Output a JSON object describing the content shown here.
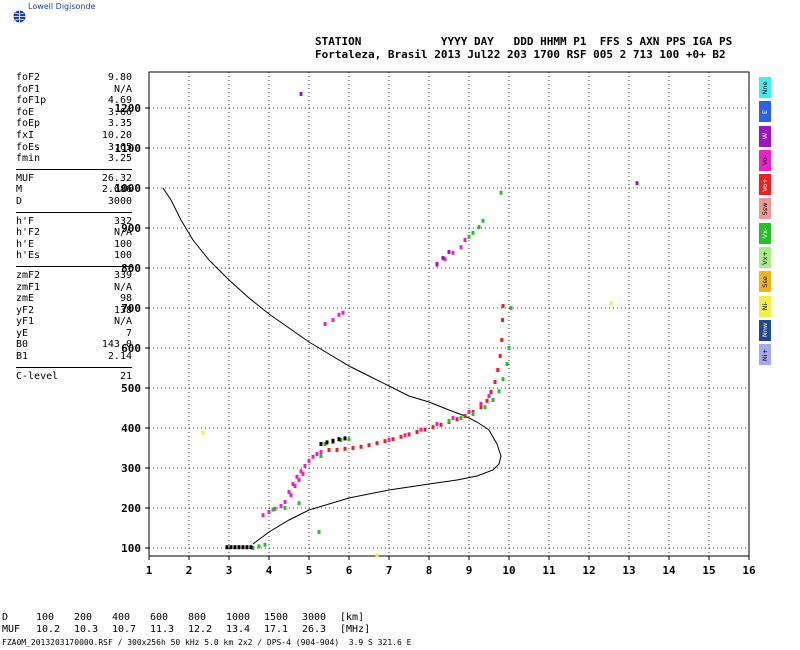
{
  "logo": {
    "text": "Lowell Digisonde",
    "icon": "globe-icon"
  },
  "header": {
    "line1": "STATION            YYYY DAY   DDD HHMM P1  FFS S AXN PPS IGA PS",
    "line2": "Fortaleza, Brasil 2013 Jul22 203 1700 RSF 005 2 713 100 +0+ B2"
  },
  "params": {
    "group1": [
      {
        "name": "foF2",
        "value": "9.80"
      },
      {
        "name": "foF1",
        "value": "N/A"
      },
      {
        "name": "foF1p",
        "value": "4.69"
      },
      {
        "name": "foE",
        "value": "3.66"
      },
      {
        "name": "foEp",
        "value": "3.35"
      },
      {
        "name": "fxI",
        "value": "10.20"
      },
      {
        "name": "foEs",
        "value": "3.65"
      },
      {
        "name": "fmin",
        "value": "3.25"
      }
    ],
    "group2": [
      {
        "name": "MUF",
        "value": "26.32"
      },
      {
        "name": "M",
        "value": "2.686"
      },
      {
        "name": "D",
        "value": "3000"
      }
    ],
    "group3": [
      {
        "name": "h'F",
        "value": "332"
      },
      {
        "name": "h'F2",
        "value": "N/A"
      },
      {
        "name": "h'E",
        "value": "100"
      },
      {
        "name": "h'Es",
        "value": "100"
      }
    ],
    "group4": [
      {
        "name": "zmF2",
        "value": "339"
      },
      {
        "name": "zmF1",
        "value": "N/A"
      },
      {
        "name": "zmE",
        "value": "98"
      },
      {
        "name": "yF2",
        "value": "138"
      },
      {
        "name": "yF1",
        "value": "N/A"
      },
      {
        "name": "yE",
        "value": "7"
      },
      {
        "name": "B0",
        "value": "143.0"
      },
      {
        "name": "B1",
        "value": "2.14"
      }
    ],
    "group5": [
      {
        "name": "C-level",
        "value": "21"
      }
    ]
  },
  "legend": [
    {
      "label": "Nne",
      "color": "#3cf0f0"
    },
    {
      "label": "E",
      "color": "#2c62e8"
    },
    {
      "label": "W",
      "color": "#9c14c8"
    },
    {
      "label": "Vo-",
      "color": "#f020c8"
    },
    {
      "label": "Vo+",
      "color": "#f01e1e"
    },
    {
      "label": "Ssw",
      "color": "#f09898"
    },
    {
      "label": "Vx-",
      "color": "#28c028"
    },
    {
      "label": "Vx+",
      "color": "#a8ee88"
    },
    {
      "label": "Sse",
      "color": "#f0b414"
    },
    {
      "label": "Ni-",
      "color": "#f0f040"
    },
    {
      "label": "Nnw",
      "color": "#1e4890"
    },
    {
      "label": "Ni+",
      "color": "#a8a8ee"
    }
  ],
  "bottom_table": {
    "rows": [
      [
        "D",
        "100",
        "200",
        "400",
        "600",
        "800",
        "1000",
        "1500",
        "3000",
        "[km]"
      ],
      [
        "MUF",
        "10.2",
        "10.3",
        "10.7",
        "11.3",
        "12.2",
        "13.4",
        "17.1",
        "26.3",
        "[MHz]"
      ]
    ]
  },
  "footer": "FZA0M_2013203170000.RSF / 300x256h 50 kHz 5.0 km 2x2 / DPS-4 (904-904)  3.9 S 321.6 E",
  "chart_data": {
    "type": "scatter",
    "xlim": [
      1,
      16
    ],
    "ylim": [
      80,
      1290
    ],
    "x_ticks": [
      "1",
      "2",
      "3",
      "4",
      "5",
      "6",
      "7",
      "8",
      "9",
      "10",
      "11",
      "12",
      "13",
      "14",
      "15",
      "16"
    ],
    "y_ticks": [
      "100",
      "200",
      "300",
      "400",
      "500",
      "600",
      "700",
      "800",
      "900",
      "1000",
      "1100",
      "1200"
    ],
    "grid": true,
    "profile_line": {
      "x": [
        1.35,
        1.55,
        1.8,
        2.1,
        2.5,
        3.0,
        3.5,
        4.0,
        4.5,
        5.0,
        5.5,
        6.0,
        6.5,
        7.0,
        7.5,
        8.0,
        8.5,
        8.9,
        9.2,
        9.5,
        9.7,
        9.8,
        9.75,
        9.6,
        9.2,
        8.7,
        8.0,
        7.0,
        6.0,
        5.0,
        4.5,
        4.0,
        3.6
      ],
      "y": [
        1000,
        970,
        920,
        870,
        820,
        770,
        725,
        685,
        650,
        615,
        585,
        555,
        530,
        505,
        480,
        465,
        445,
        430,
        415,
        395,
        360,
        330,
        310,
        295,
        280,
        270,
        260,
        245,
        225,
        195,
        170,
        140,
        110
      ]
    },
    "series": [
      {
        "color": "#f01e1e",
        "x": [
          5.3,
          5.5,
          5.7,
          5.9,
          6.1,
          6.3,
          6.5,
          6.7,
          6.9,
          7.1,
          7.3,
          7.5,
          7.7,
          7.9,
          8.1,
          8.3,
          8.5,
          8.7,
          8.9,
          9.1,
          9.3,
          9.45,
          9.55,
          9.65,
          9.72,
          9.78,
          9.82,
          9.84,
          9.85
        ],
        "y": [
          338,
          345,
          345,
          348,
          350,
          353,
          357,
          362,
          367,
          372,
          378,
          384,
          390,
          396,
          402,
          408,
          415,
          422,
          430,
          440,
          452,
          468,
          490,
          515,
          545,
          580,
          620,
          670,
          705
        ]
      },
      {
        "color": "#f020c8",
        "x": [
          3.85,
          4.0,
          4.15,
          4.3,
          4.4,
          4.5,
          4.6,
          4.7,
          4.8,
          4.9,
          5.0,
          5.1,
          5.2,
          5.3,
          7.0,
          7.4,
          7.8,
          8.2,
          8.6,
          9.0,
          9.3,
          9.5,
          4.55,
          4.65,
          4.75,
          4.85,
          5.4,
          5.6,
          5.75,
          5.85,
          8.2,
          8.4,
          8.6,
          8.8,
          8.9
        ],
        "y": [
          182,
          190,
          198,
          205,
          215,
          240,
          260,
          278,
          292,
          305,
          318,
          328,
          335,
          340,
          370,
          382,
          396,
          410,
          425,
          440,
          460,
          480,
          232,
          255,
          270,
          285,
          660,
          670,
          683,
          688,
          808,
          822,
          838,
          852,
          870
        ]
      },
      {
        "color": "#28c028",
        "x": [
          3.6,
          3.75,
          3.9,
          4.1,
          4.4,
          4.75,
          5.4,
          5.6,
          5.8,
          6.0,
          8.5,
          8.8,
          9.1,
          9.4,
          9.6,
          9.75,
          9.85,
          9.95,
          10.0,
          10.05,
          9.0,
          9.1,
          9.25,
          9.35,
          9.8,
          5.3,
          5.25
        ],
        "y": [
          100,
          104,
          108,
          196,
          200,
          212,
          360,
          365,
          370,
          372,
          418,
          425,
          435,
          452,
          470,
          492,
          522,
          560,
          600,
          700,
          878,
          888,
          902,
          918,
          988,
          330,
          140
        ]
      },
      {
        "color": "#000000",
        "x": [
          2.95,
          3.05,
          3.15,
          3.25,
          3.35,
          3.45,
          3.55,
          5.3,
          5.45,
          5.6,
          5.75,
          5.9
        ],
        "y": [
          102,
          102,
          102,
          102,
          102,
          102,
          102,
          360,
          364,
          368,
          372,
          374
        ]
      },
      {
        "color": "#9c14c8",
        "x": [
          8.2,
          8.35,
          8.5,
          13.2,
          4.8
        ],
        "y": [
          810,
          825,
          840,
          1012,
          1235
        ]
      },
      {
        "color": "#f0f040",
        "x": [
          2.35,
          12.55,
          6.7
        ],
        "y": [
          388,
          712,
          82
        ]
      }
    ]
  }
}
